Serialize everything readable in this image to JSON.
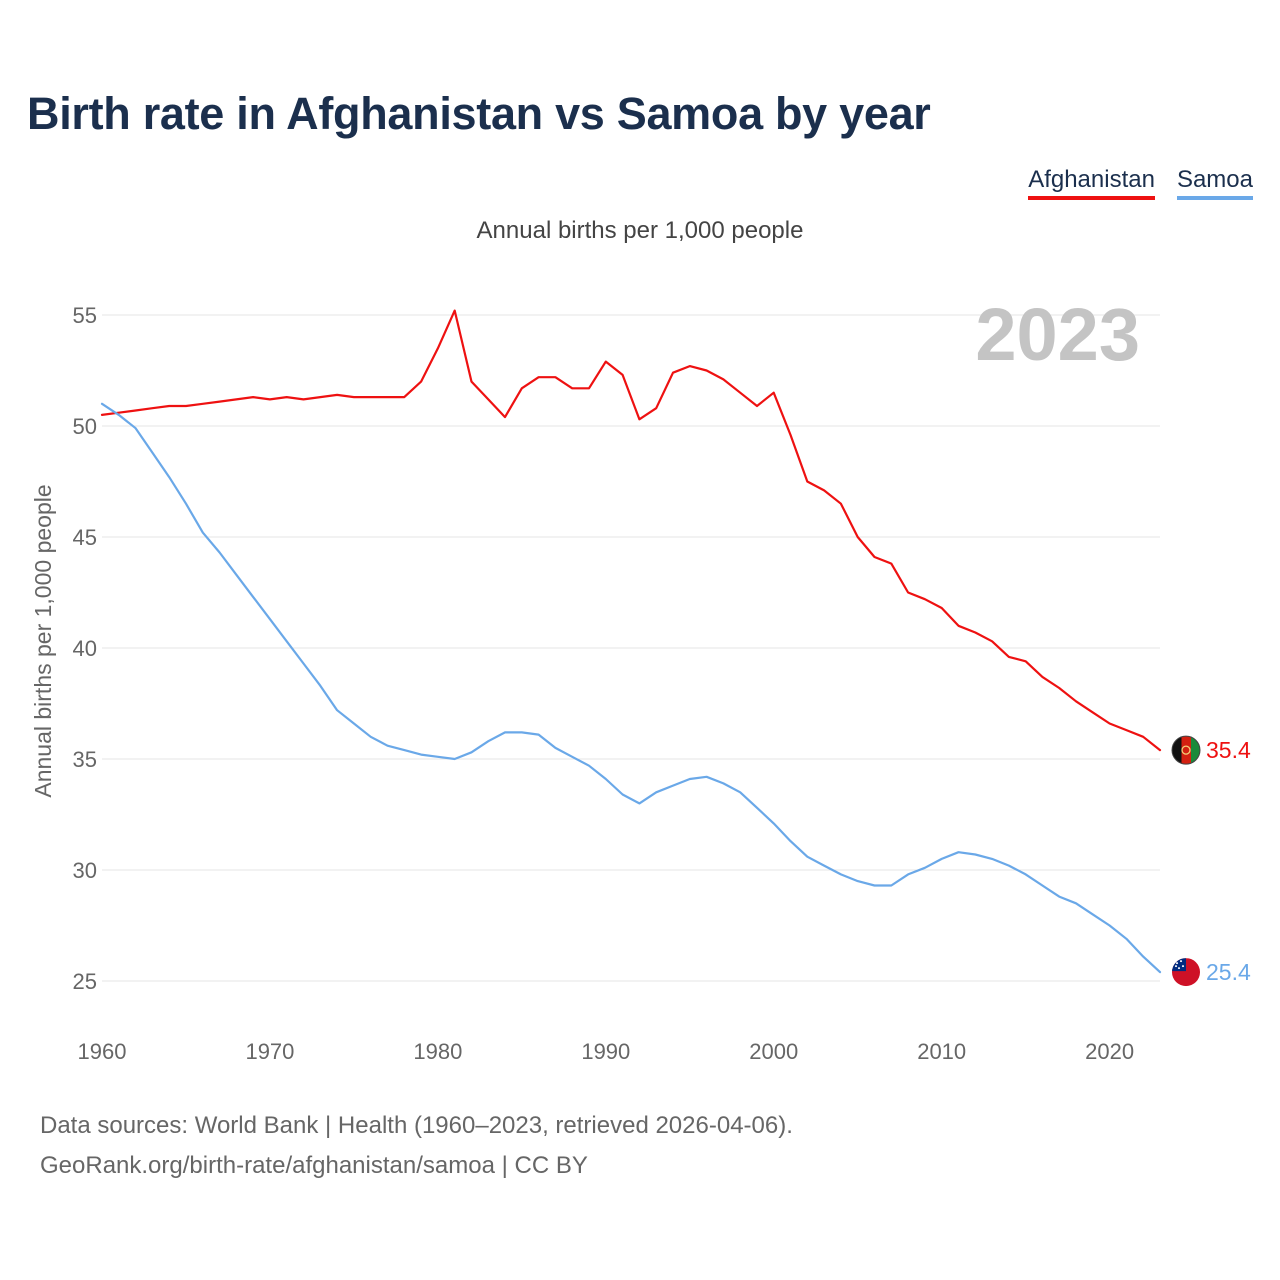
{
  "title": "Birth rate in Afghanistan vs Samoa by year",
  "subtitle": "Annual births per 1,000 people",
  "footer": {
    "line1": "Data sources: World Bank | Health (1960–2023, retrieved 2026-04-06).",
    "line2": "GeoRank.org/birth-rate/afghanistan/samoa | CC BY"
  },
  "colors": {
    "afghanistan": "#ee1111",
    "samoa": "#6aa8e8",
    "title": "#1b2f4d",
    "year_watermark": "#c4c4c4"
  },
  "chart_data": {
    "type": "line",
    "title": "Birth rate in Afghanistan vs Samoa by year",
    "ylabel": "Annual births per 1,000 people",
    "xlabel": "",
    "year_label": "2023",
    "xlim": [
      1960,
      2023
    ],
    "ylim": [
      23,
      57
    ],
    "xticks": [
      1960,
      1970,
      1980,
      1990,
      2000,
      2010,
      2020
    ],
    "yticks": [
      25,
      30,
      35,
      40,
      45,
      50,
      55
    ],
    "grid": true,
    "legend": "top-right",
    "x": [
      1960,
      1961,
      1962,
      1963,
      1964,
      1965,
      1966,
      1967,
      1968,
      1969,
      1970,
      1971,
      1972,
      1973,
      1974,
      1975,
      1976,
      1977,
      1978,
      1979,
      1980,
      1981,
      1982,
      1983,
      1984,
      1985,
      1986,
      1987,
      1988,
      1989,
      1990,
      1991,
      1992,
      1993,
      1994,
      1995,
      1996,
      1997,
      1998,
      1999,
      2000,
      2001,
      2002,
      2003,
      2004,
      2005,
      2006,
      2007,
      2008,
      2009,
      2010,
      2011,
      2012,
      2013,
      2014,
      2015,
      2016,
      2017,
      2018,
      2019,
      2020,
      2021,
      2022,
      2023
    ],
    "series": [
      {
        "name": "Afghanistan",
        "color": "#ee1111",
        "end_label": "35.4",
        "values": [
          50.5,
          50.6,
          50.7,
          50.8,
          50.9,
          50.9,
          51.0,
          51.1,
          51.2,
          51.3,
          51.2,
          51.3,
          51.2,
          51.3,
          51.4,
          51.3,
          51.3,
          51.3,
          51.3,
          52.0,
          53.5,
          55.2,
          52.0,
          51.2,
          50.4,
          51.7,
          52.2,
          52.2,
          51.7,
          51.7,
          52.9,
          52.3,
          50.3,
          50.8,
          52.4,
          52.7,
          52.5,
          52.1,
          51.5,
          50.9,
          51.5,
          49.6,
          47.5,
          47.1,
          46.5,
          45.0,
          44.1,
          43.8,
          42.5,
          42.2,
          41.8,
          41.0,
          40.7,
          40.3,
          39.6,
          39.4,
          38.7,
          38.2,
          37.6,
          37.1,
          36.6,
          36.3,
          36.0,
          35.4
        ]
      },
      {
        "name": "Samoa",
        "color": "#6aa8e8",
        "end_label": "25.4",
        "values": [
          51.0,
          50.5,
          49.9,
          48.8,
          47.7,
          46.5,
          45.2,
          44.3,
          43.3,
          42.3,
          41.3,
          40.3,
          39.3,
          38.3,
          37.2,
          36.6,
          36.0,
          35.6,
          35.4,
          35.2,
          35.1,
          35.0,
          35.3,
          35.8,
          36.2,
          36.2,
          36.1,
          35.5,
          35.1,
          34.7,
          34.1,
          33.4,
          33.0,
          33.5,
          33.8,
          34.1,
          34.2,
          33.9,
          33.5,
          32.8,
          32.1,
          31.3,
          30.6,
          30.2,
          29.8,
          29.5,
          29.3,
          29.3,
          29.8,
          30.1,
          30.5,
          30.8,
          30.7,
          30.5,
          30.2,
          29.8,
          29.3,
          28.8,
          28.5,
          28.0,
          27.5,
          26.9,
          26.1,
          25.4
        ]
      }
    ]
  }
}
